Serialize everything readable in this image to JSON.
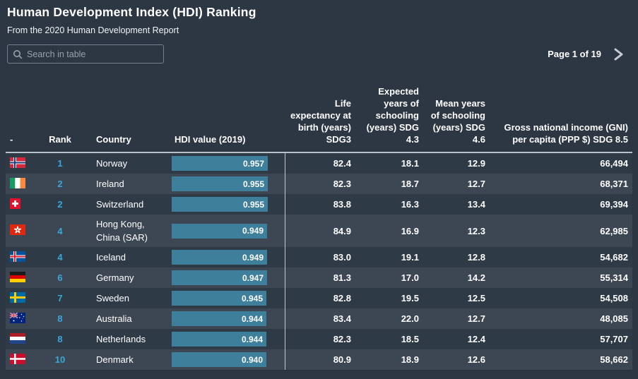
{
  "page": {
    "title": "Human Development Index (HDI) Ranking",
    "subtitle": "From the 2020 Human Development Report",
    "search": {
      "placeholder": "Search in table"
    },
    "pagination": {
      "label": "Page 1 of 19",
      "next_icon": "chevron-right"
    }
  },
  "table": {
    "columns": [
      {
        "key": "flag",
        "label": "-"
      },
      {
        "key": "rank",
        "label": "Rank"
      },
      {
        "key": "country",
        "label": "Country"
      },
      {
        "key": "hdi",
        "label": "HDI value (2019)"
      },
      {
        "key": "life_expectancy",
        "label": "Life expectancy at birth (years) SDG3"
      },
      {
        "key": "expected_schooling",
        "label": "Expected years of schooling (years) SDG 4.3"
      },
      {
        "key": "mean_schooling",
        "label": "Mean years of schooling (years) SDG 4.6"
      },
      {
        "key": "gni",
        "label": "Gross national income (GNI) per capita (PPP $) SDG 8.5"
      }
    ],
    "rows": [
      {
        "flag": "norway",
        "rank": "1",
        "country": "Norway",
        "hdi": "0.957",
        "life_expectancy": "82.4",
        "expected_schooling": "18.1",
        "mean_schooling": "12.9",
        "gni": "66,494"
      },
      {
        "flag": "ireland",
        "rank": "2",
        "country": "Ireland",
        "hdi": "0.955",
        "life_expectancy": "82.3",
        "expected_schooling": "18.7",
        "mean_schooling": "12.7",
        "gni": "68,371"
      },
      {
        "flag": "switzerland",
        "rank": "2",
        "country": "Switzerland",
        "hdi": "0.955",
        "life_expectancy": "83.8",
        "expected_schooling": "16.3",
        "mean_schooling": "13.4",
        "gni": "69,394"
      },
      {
        "flag": "hong_kong",
        "rank": "4",
        "country": "Hong Kong, China (SAR)",
        "hdi": "0.949",
        "life_expectancy": "84.9",
        "expected_schooling": "16.9",
        "mean_schooling": "12.3",
        "gni": "62,985"
      },
      {
        "flag": "iceland",
        "rank": "4",
        "country": "Iceland",
        "hdi": "0.949",
        "life_expectancy": "83.0",
        "expected_schooling": "19.1",
        "mean_schooling": "12.8",
        "gni": "54,682"
      },
      {
        "flag": "germany",
        "rank": "6",
        "country": "Germany",
        "hdi": "0.947",
        "life_expectancy": "81.3",
        "expected_schooling": "17.0",
        "mean_schooling": "14.2",
        "gni": "55,314"
      },
      {
        "flag": "sweden",
        "rank": "7",
        "country": "Sweden",
        "hdi": "0.945",
        "life_expectancy": "82.8",
        "expected_schooling": "19.5",
        "mean_schooling": "12.5",
        "gni": "54,508"
      },
      {
        "flag": "australia",
        "rank": "8",
        "country": "Australia",
        "hdi": "0.944",
        "life_expectancy": "83.4",
        "expected_schooling": "22.0",
        "mean_schooling": "12.7",
        "gni": "48,085"
      },
      {
        "flag": "netherlands",
        "rank": "8",
        "country": "Netherlands",
        "hdi": "0.944",
        "life_expectancy": "82.3",
        "expected_schooling": "18.5",
        "mean_schooling": "12.4",
        "gni": "57,707"
      },
      {
        "flag": "denmark",
        "rank": "10",
        "country": "Denmark",
        "hdi": "0.940",
        "life_expectancy": "80.9",
        "expected_schooling": "18.9",
        "mean_schooling": "12.6",
        "gni": "58,662"
      }
    ],
    "hdi_bar_max": 0.957
  },
  "colors": {
    "background": "#2d3744",
    "row_dark": "#2f3a47",
    "row_light": "#3d4754",
    "hdi_bar": "#3e7f9c",
    "rank_text": "#3ba6da",
    "divider": "#c2c9d0"
  }
}
